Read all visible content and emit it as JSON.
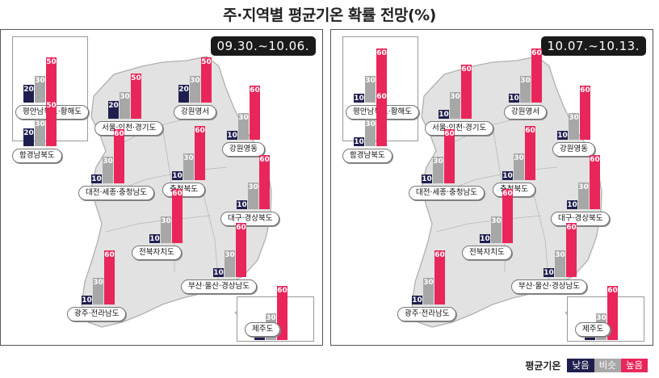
{
  "title": "주·지역별 평균기온 확률 전망(%)",
  "colors": {
    "low": "#1f1f4f",
    "similar": "#a7a7a7",
    "high": "#e8265a"
  },
  "legend": {
    "title": "평균기온",
    "low": "낮음",
    "similar": "비슷",
    "high": "높음"
  },
  "panels": [
    {
      "period": "09.30.~10.06.",
      "regions": [
        {
          "name": "평안남북도·황해도",
          "low": 20,
          "similar": 30,
          "high": 50
        },
        {
          "name": "함경남북도",
          "low": 20,
          "similar": 30,
          "high": 50
        },
        {
          "name": "서울·인천·경기도",
          "low": 20,
          "similar": 30,
          "high": 50
        },
        {
          "name": "강원영서",
          "low": 20,
          "similar": 30,
          "high": 50
        },
        {
          "name": "강원영동",
          "low": 10,
          "similar": 30,
          "high": 60
        },
        {
          "name": "대전·세종·충청남도",
          "low": 10,
          "similar": 30,
          "high": 60
        },
        {
          "name": "충청북도",
          "low": 10,
          "similar": 30,
          "high": 60
        },
        {
          "name": "대구·경상북도",
          "low": 10,
          "similar": 30,
          "high": 60
        },
        {
          "name": "전북자치도",
          "low": 10,
          "similar": 30,
          "high": 60
        },
        {
          "name": "부산·울산·경상남도",
          "low": 10,
          "similar": 30,
          "high": 60
        },
        {
          "name": "광주·전라남도",
          "low": 10,
          "similar": 30,
          "high": 60
        },
        {
          "name": "제주도",
          "low": 10,
          "similar": 30,
          "high": 60
        }
      ]
    },
    {
      "period": "10.07.~10.13.",
      "regions": [
        {
          "name": "평안남북도·황해도",
          "low": 10,
          "similar": 30,
          "high": 60
        },
        {
          "name": "함경남북도",
          "low": 10,
          "similar": 30,
          "high": 60
        },
        {
          "name": "서울·인천·경기도",
          "low": 10,
          "similar": 30,
          "high": 60
        },
        {
          "name": "강원영서",
          "low": 10,
          "similar": 30,
          "high": 60
        },
        {
          "name": "강원영동",
          "low": 10,
          "similar": 30,
          "high": 60
        },
        {
          "name": "대전·세종·충청남도",
          "low": 10,
          "similar": 30,
          "high": 60
        },
        {
          "name": "충청북도",
          "low": 10,
          "similar": 30,
          "high": 60
        },
        {
          "name": "대구·경상북도",
          "low": 10,
          "similar": 30,
          "high": 60
        },
        {
          "name": "전북자치도",
          "low": 10,
          "similar": 30,
          "high": 60
        },
        {
          "name": "부산·울산·경상남도",
          "low": 10,
          "similar": 30,
          "high": 60
        },
        {
          "name": "광주·전라남도",
          "low": 10,
          "similar": 30,
          "high": 60
        },
        {
          "name": "제주도",
          "low": 10,
          "similar": 30,
          "high": 60
        }
      ]
    }
  ]
}
